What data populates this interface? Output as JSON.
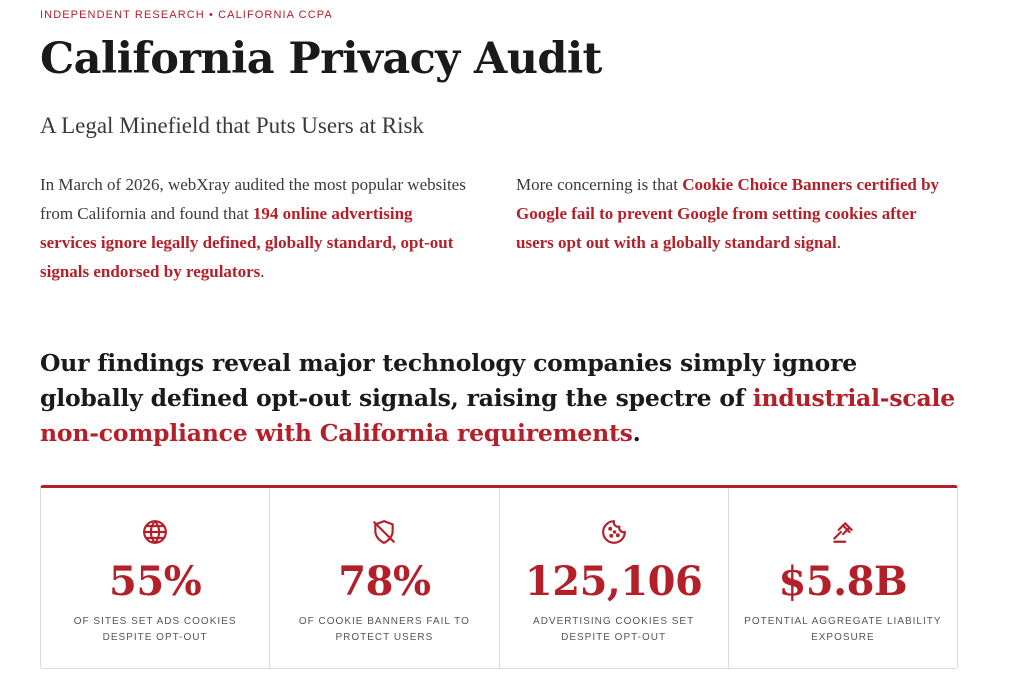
{
  "header": {
    "eyebrow": "INDEPENDENT RESEARCH • CALIFORNIA CCPA",
    "title": "California Privacy Audit",
    "subtitle": "A Legal Minefield that Puts Users at Risk"
  },
  "intro": {
    "left_plain": "In March of 2026, webXray audited the most popular websites from California and found that ",
    "left_highlight": "194 online advertising services ignore legally defined, globally standard, opt-out signals endorsed by regulators",
    "left_end": ".",
    "right_plain": "More concerning is that ",
    "right_highlight": "Cookie Choice Banners certified by Google fail to prevent Google from setting cookies after users opt out with a globally standard signal",
    "right_end": "."
  },
  "findings": {
    "plain": "Our findings reveal major technology companies simply ignore globally defined opt-out signals, raising the spectre of ",
    "highlight": "industrial-scale non-compliance with California requirements",
    "end": "."
  },
  "stats": [
    {
      "icon": "globe-icon",
      "value": "55%",
      "label": "OF SITES SET ADS COOKIES DESPITE OPT-OUT"
    },
    {
      "icon": "shield-off-icon",
      "value": "78%",
      "label": "OF COOKIE BANNERS FAIL TO PROTECT USERS"
    },
    {
      "icon": "cookie-icon",
      "value": "125,106",
      "label": "ADVERTISING COOKIES SET DESPITE OPT-OUT"
    },
    {
      "icon": "gavel-icon",
      "value": "$5.8B",
      "label": "POTENTIAL AGGREGATE LIABILITY EXPOSURE"
    }
  ],
  "colors": {
    "accent": "#b3202a",
    "text": "#1a1a1a",
    "muted": "#555555",
    "border": "#dcdcdc"
  }
}
